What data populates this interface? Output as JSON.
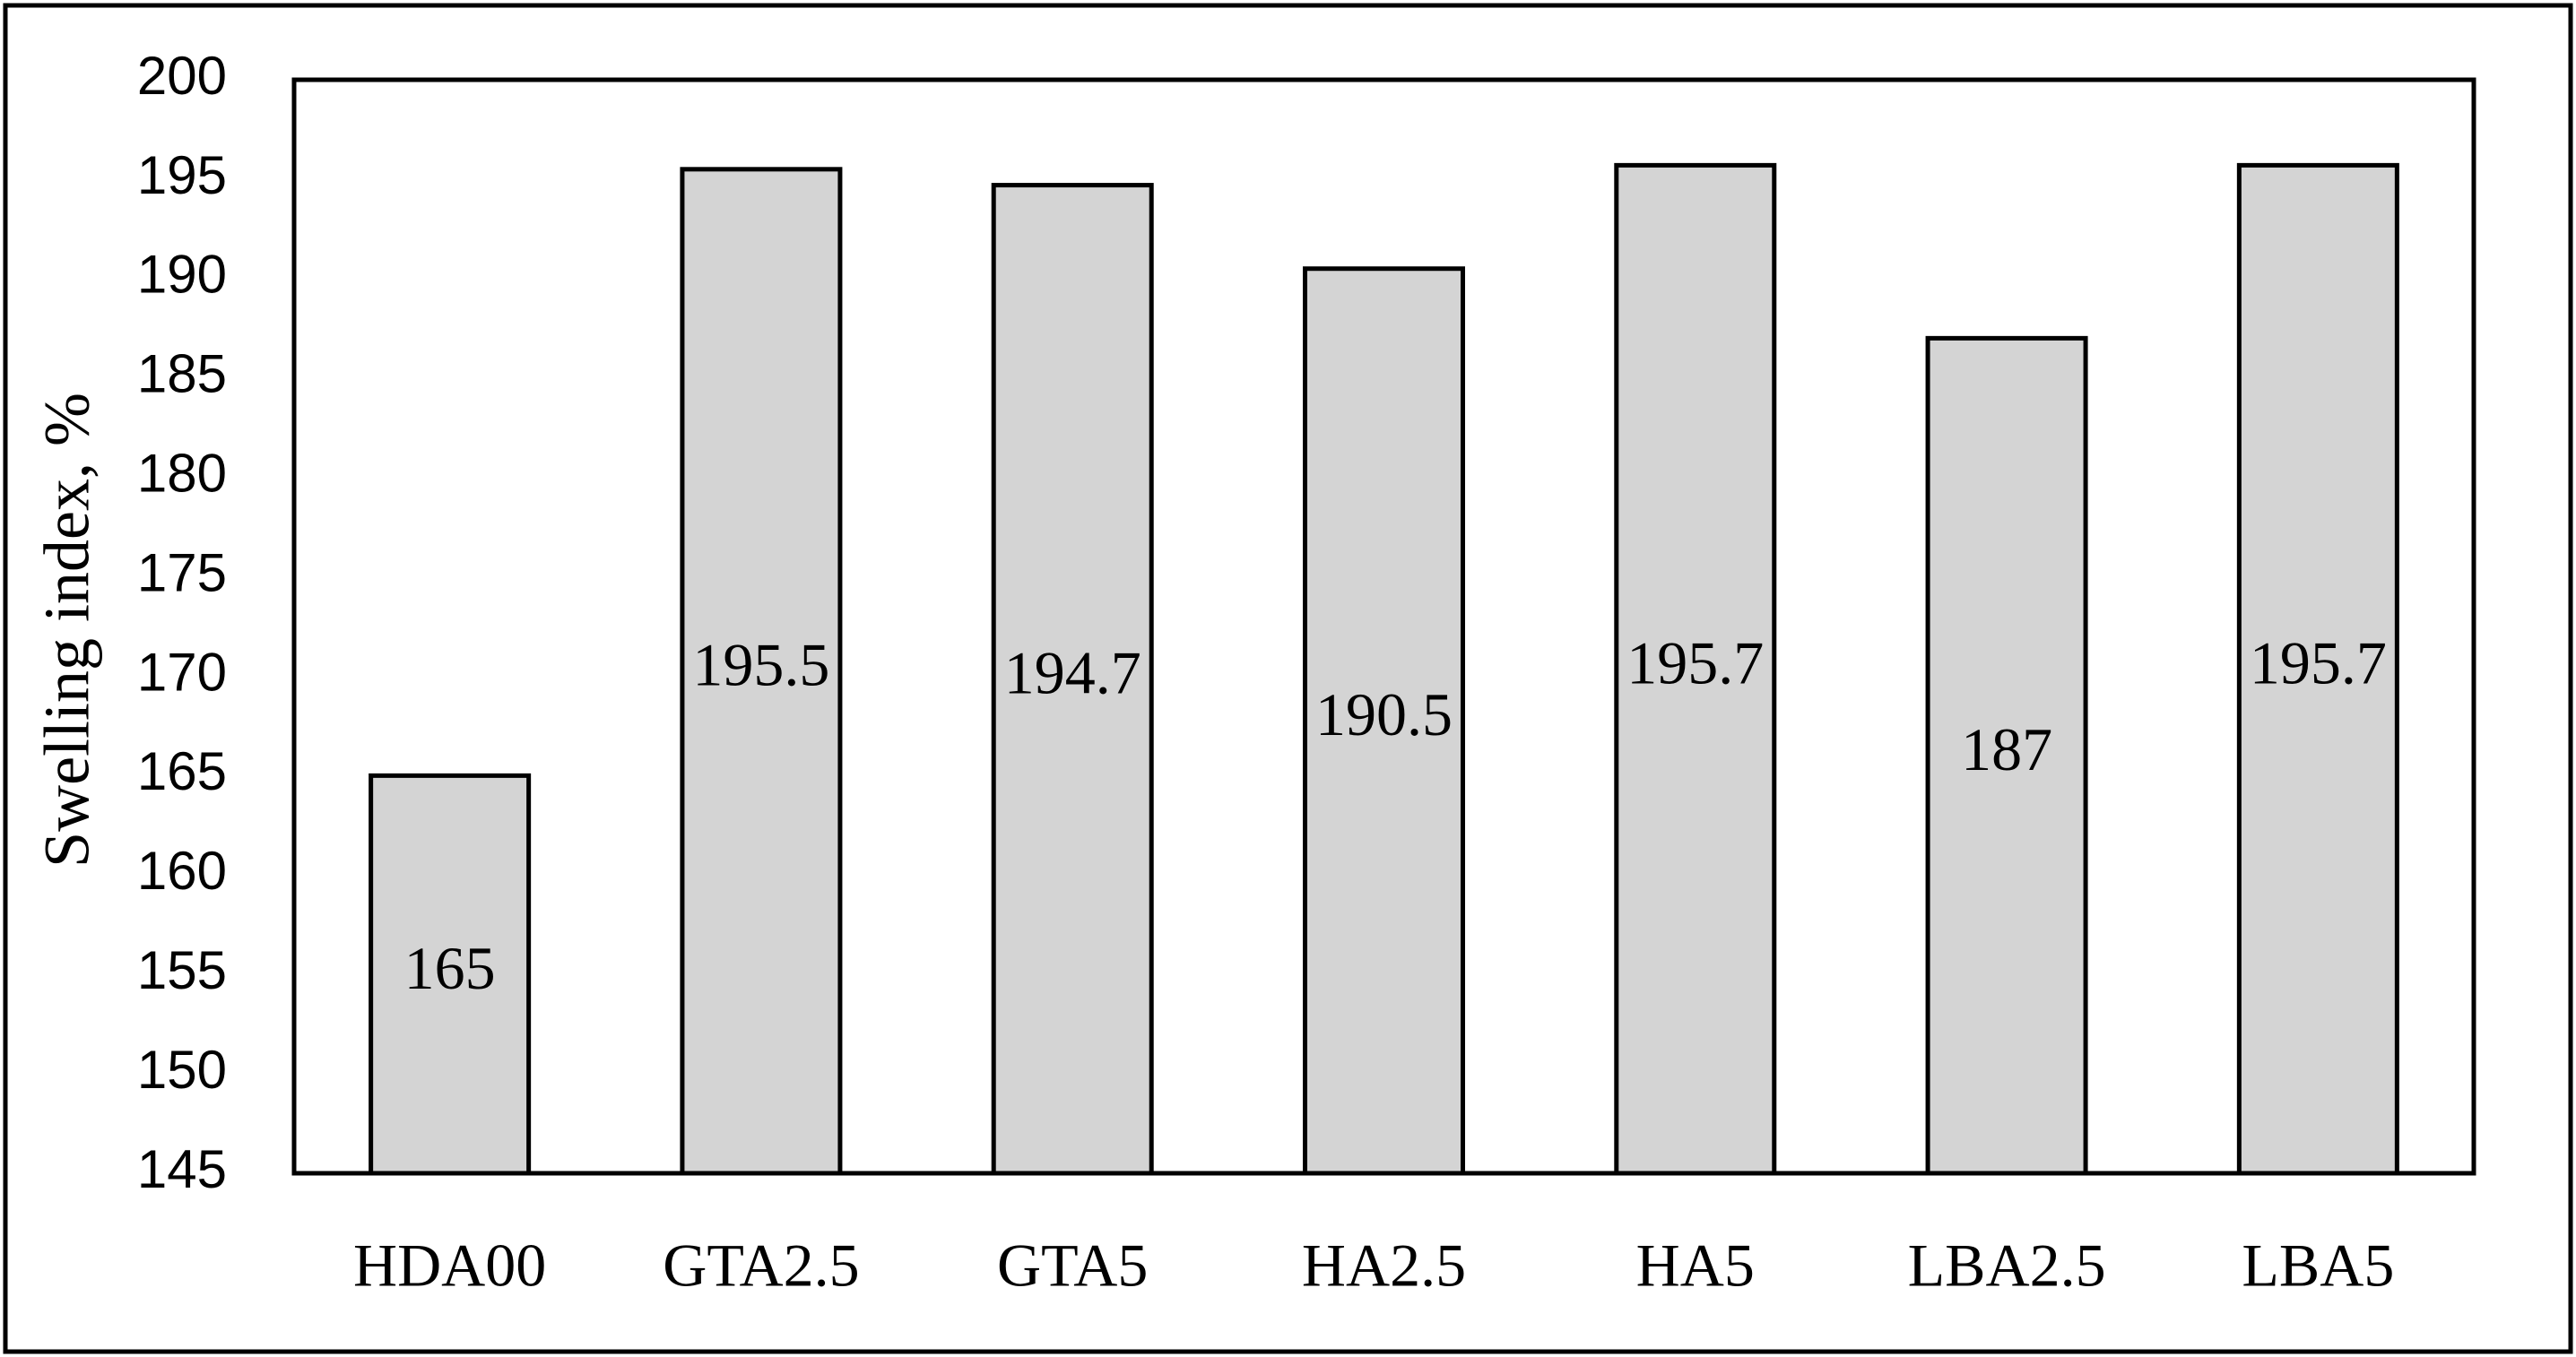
{
  "chart_data": {
    "type": "bar",
    "title": "",
    "xlabel": "",
    "ylabel": "Swelling index, %",
    "categories": [
      "HDA00",
      "GTA2.5",
      "GTA5",
      "HA2.5",
      "HA5",
      "LBA2.5",
      "LBA5"
    ],
    "values": [
      165,
      195.5,
      194.7,
      190.5,
      195.7,
      187,
      195.7
    ],
    "data_labels": [
      "165",
      "195.5",
      "194.7",
      "190.5",
      "195.7",
      "187",
      "195.7"
    ],
    "ylim": [
      145,
      200
    ],
    "yticks": [
      145,
      150,
      155,
      160,
      165,
      170,
      175,
      180,
      185,
      190,
      195,
      200
    ],
    "grid": false,
    "legend": false,
    "colors": {
      "bar_fill": "#d4d4d4",
      "bar_stroke": "#000000",
      "frame": "#000000"
    }
  }
}
